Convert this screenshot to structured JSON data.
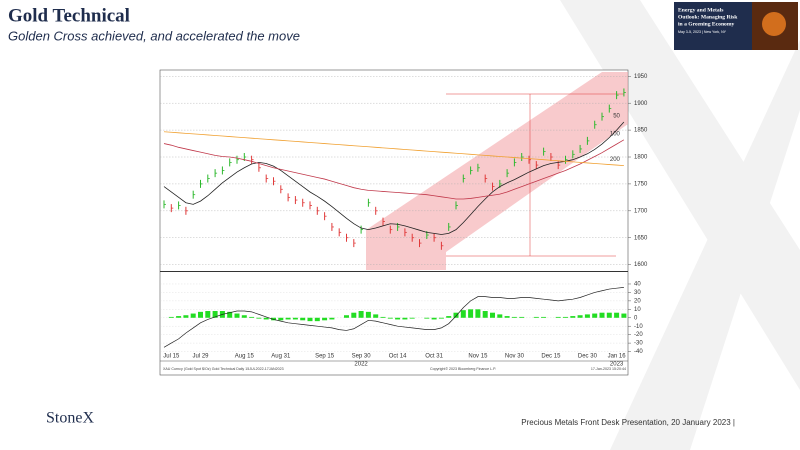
{
  "slide": {
    "title": "Gold Technical",
    "subtitle": "Golden Cross achieved, and accelerated the move",
    "banner": {
      "lines": [
        "Energy and Metals",
        "Outlook: Managing Risk",
        "in a Greening Economy"
      ],
      "date": "May 3-5, 2023 | New York, NY"
    },
    "logo": "StoneX",
    "footer": "Precious Metals Front Desk Presentation, 20 January 2023 |"
  },
  "chart_data": {
    "type": "bar-line",
    "categories": [
      null,
      "Jul 15",
      null,
      null,
      null,
      "Jul 29",
      null,
      null,
      null,
      null,
      null,
      "Aug 15",
      null,
      null,
      null,
      null,
      "Aug 31",
      null,
      null,
      null,
      null,
      null,
      "Sep 15",
      null,
      null,
      null,
      null,
      "Sep 30",
      null,
      null,
      null,
      null,
      "Oct 14",
      null,
      null,
      null,
      null,
      "Oct 31",
      null,
      null,
      null,
      null,
      null,
      "Nov 15",
      null,
      null,
      null,
      null,
      "Nov 30",
      null,
      null,
      null,
      null,
      "Dec 15",
      null,
      null,
      null,
      null,
      "Dec 30",
      null,
      null,
      null,
      "Jan 16",
      null
    ],
    "years": [
      {
        "at": 27,
        "label": "2022"
      },
      {
        "at": 62,
        "label": "2023"
      }
    ],
    "ylim": [
      1590,
      1958
    ],
    "yticks": [
      1600,
      1650,
      1700,
      1750,
      1800,
      1850,
      1900,
      1950
    ],
    "grid": true,
    "series": [
      {
        "name": "Gold Spot",
        "up_color": "#2db82d",
        "down_color": "#e03a3a",
        "values": [
          1712,
          1705,
          1710,
          1700,
          1730,
          1750,
          1760,
          1770,
          1775,
          1790,
          1795,
          1800,
          1795,
          1780,
          1760,
          1755,
          1740,
          1725,
          1720,
          1715,
          1710,
          1700,
          1690,
          1670,
          1660,
          1650,
          1640,
          1665,
          1715,
          1700,
          1680,
          1665,
          1670,
          1660,
          1650,
          1640,
          1655,
          1650,
          1635,
          1670,
          1710,
          1760,
          1775,
          1780,
          1760,
          1745,
          1750,
          1770,
          1790,
          1800,
          1795,
          1785,
          1810,
          1800,
          1785,
          1795,
          1805,
          1815,
          1830,
          1860,
          1875,
          1890,
          1915,
          1920
        ]
      },
      {
        "name": "50",
        "color": "#222222",
        "values": [
          1745,
          1735,
          1725,
          1715,
          1712,
          1718,
          1728,
          1740,
          1752,
          1762,
          1772,
          1780,
          1787,
          1790,
          1788,
          1783,
          1775,
          1765,
          1755,
          1745,
          1735,
          1727,
          1718,
          1708,
          1697,
          1686,
          1676,
          1668,
          1665,
          1668,
          1672,
          1676,
          1675,
          1672,
          1668,
          1664,
          1660,
          1658,
          1656,
          1658,
          1665,
          1678,
          1693,
          1708,
          1722,
          1735,
          1745,
          1752,
          1758,
          1765,
          1772,
          1778,
          1784,
          1788,
          1790,
          1792,
          1795,
          1800,
          1806,
          1814,
          1824,
          1836,
          1850,
          1865
        ]
      },
      {
        "name": "100",
        "color": "#c0384a",
        "values": [
          1825,
          1822,
          1818,
          1815,
          1812,
          1809,
          1806,
          1803,
          1801,
          1800,
          1798,
          1795,
          1792,
          1788,
          1784,
          1780,
          1777,
          1774,
          1771,
          1768,
          1765,
          1762,
          1759,
          1755,
          1751,
          1747,
          1743,
          1740,
          1738,
          1737,
          1736,
          1735,
          1734,
          1733,
          1732,
          1731,
          1730,
          1728,
          1726,
          1724,
          1722,
          1722,
          1723,
          1725,
          1727,
          1729,
          1731,
          1735,
          1740,
          1745,
          1750,
          1755,
          1760,
          1765,
          1770,
          1775,
          1781,
          1787,
          1794,
          1801,
          1808,
          1816,
          1824,
          1832
        ]
      },
      {
        "name": "200",
        "color": "#f0a030",
        "values": [
          1847,
          1846,
          1845,
          1844,
          1843,
          1842,
          1841,
          1840,
          1839,
          1838,
          1837,
          1836,
          1835,
          1834,
          1833,
          1832,
          1831,
          1830,
          1829,
          1828,
          1827,
          1826,
          1825,
          1824,
          1823,
          1822,
          1821,
          1820,
          1819,
          1818,
          1817,
          1816,
          1815,
          1814,
          1813,
          1812,
          1811,
          1810,
          1809,
          1808,
          1807,
          1806,
          1805,
          1804,
          1803,
          1802,
          1801,
          1800,
          1799,
          1798,
          1797,
          1796,
          1795,
          1794,
          1793,
          1792,
          1791,
          1790,
          1789,
          1788,
          1787,
          1786,
          1785,
          1784
        ]
      }
    ],
    "lower": {
      "ylim": [
        -50,
        53
      ],
      "yticks": [
        -40,
        -30,
        -20,
        -10,
        0,
        10,
        20,
        30,
        40
      ],
      "histogram": {
        "color": "#22dd22",
        "values": [
          0,
          1,
          2,
          3,
          5,
          7,
          8,
          8,
          8,
          7,
          5,
          3,
          1,
          -1,
          -2,
          -3,
          -3,
          -2,
          -2,
          -3,
          -4,
          -4,
          -3,
          -2,
          0,
          3,
          6,
          8,
          7,
          4,
          1,
          -1,
          -2,
          -2,
          -1,
          0,
          -1,
          -2,
          -1,
          2,
          6,
          9,
          10,
          10,
          8,
          6,
          4,
          2,
          1,
          1,
          0,
          1,
          1,
          0,
          1,
          1,
          2,
          3,
          4,
          5,
          6,
          6,
          6,
          5
        ]
      },
      "line": {
        "color": "#222222",
        "values": [
          -35,
          -30,
          -25,
          -18,
          -12,
          -6,
          -2,
          1,
          4,
          6,
          8,
          8,
          7,
          4,
          1,
          -2,
          -4,
          -6,
          -7,
          -8,
          -9,
          -10,
          -11,
          -12,
          -14,
          -15,
          -13,
          -8,
          -3,
          -4,
          -6,
          -8,
          -10,
          -11,
          -12,
          -13,
          -14,
          -14,
          -12,
          -7,
          2,
          12,
          20,
          25,
          25,
          24,
          24,
          23,
          23,
          24,
          24,
          23,
          22,
          21,
          20,
          21,
          22,
          24,
          27,
          30,
          32,
          34,
          35,
          36
        ]
      }
    },
    "notes": [
      "XAU Curncy (Gold Spot $/Oz) Gold Technical Daily 15JUL2022-17JAN2023",
      "Copyright© 2023 Bloomberg Finance L.P.",
      "17-Jan-2023 15:20:44"
    ]
  }
}
